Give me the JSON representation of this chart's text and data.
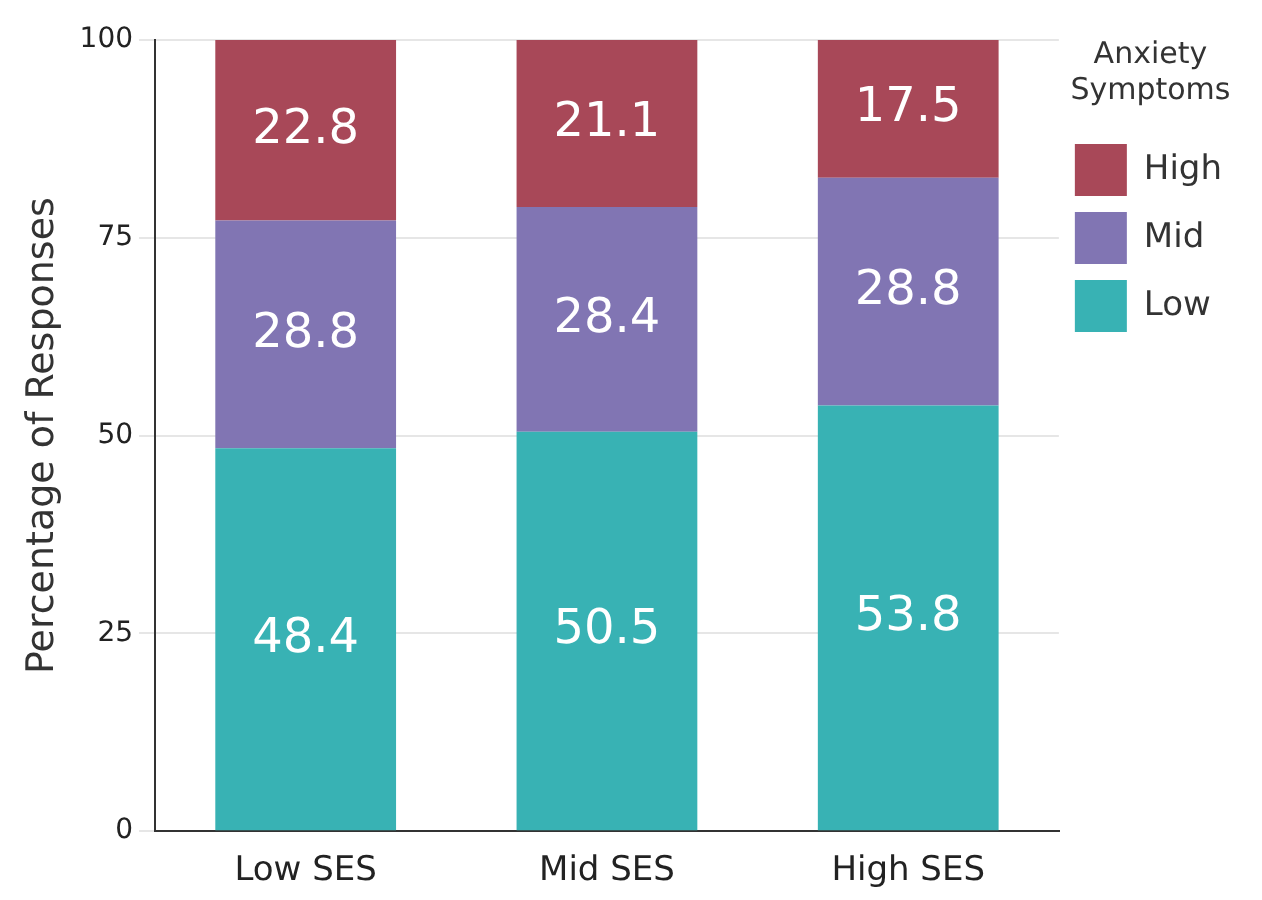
{
  "chart_data": {
    "type": "bar",
    "ylabel": "Percentage of Responses",
    "legend_title": "Anxiety Symptoms",
    "categories": [
      "Low SES",
      "Mid SES",
      "High SES"
    ],
    "series": [
      {
        "name": "Low",
        "color": "#38b2b4",
        "values": [
          48.4,
          50.5,
          53.8
        ]
      },
      {
        "name": "Mid",
        "color": "#8175b3",
        "values": [
          28.8,
          28.4,
          28.8
        ]
      },
      {
        "name": "High",
        "color": "#a84858",
        "values": [
          22.8,
          21.1,
          17.5
        ]
      }
    ],
    "stacked": true,
    "ylim": [
      0,
      100
    ],
    "yticks": [
      0,
      25,
      50,
      75,
      100
    ],
    "grid": "y",
    "legend": "top right",
    "data_labels": true
  }
}
